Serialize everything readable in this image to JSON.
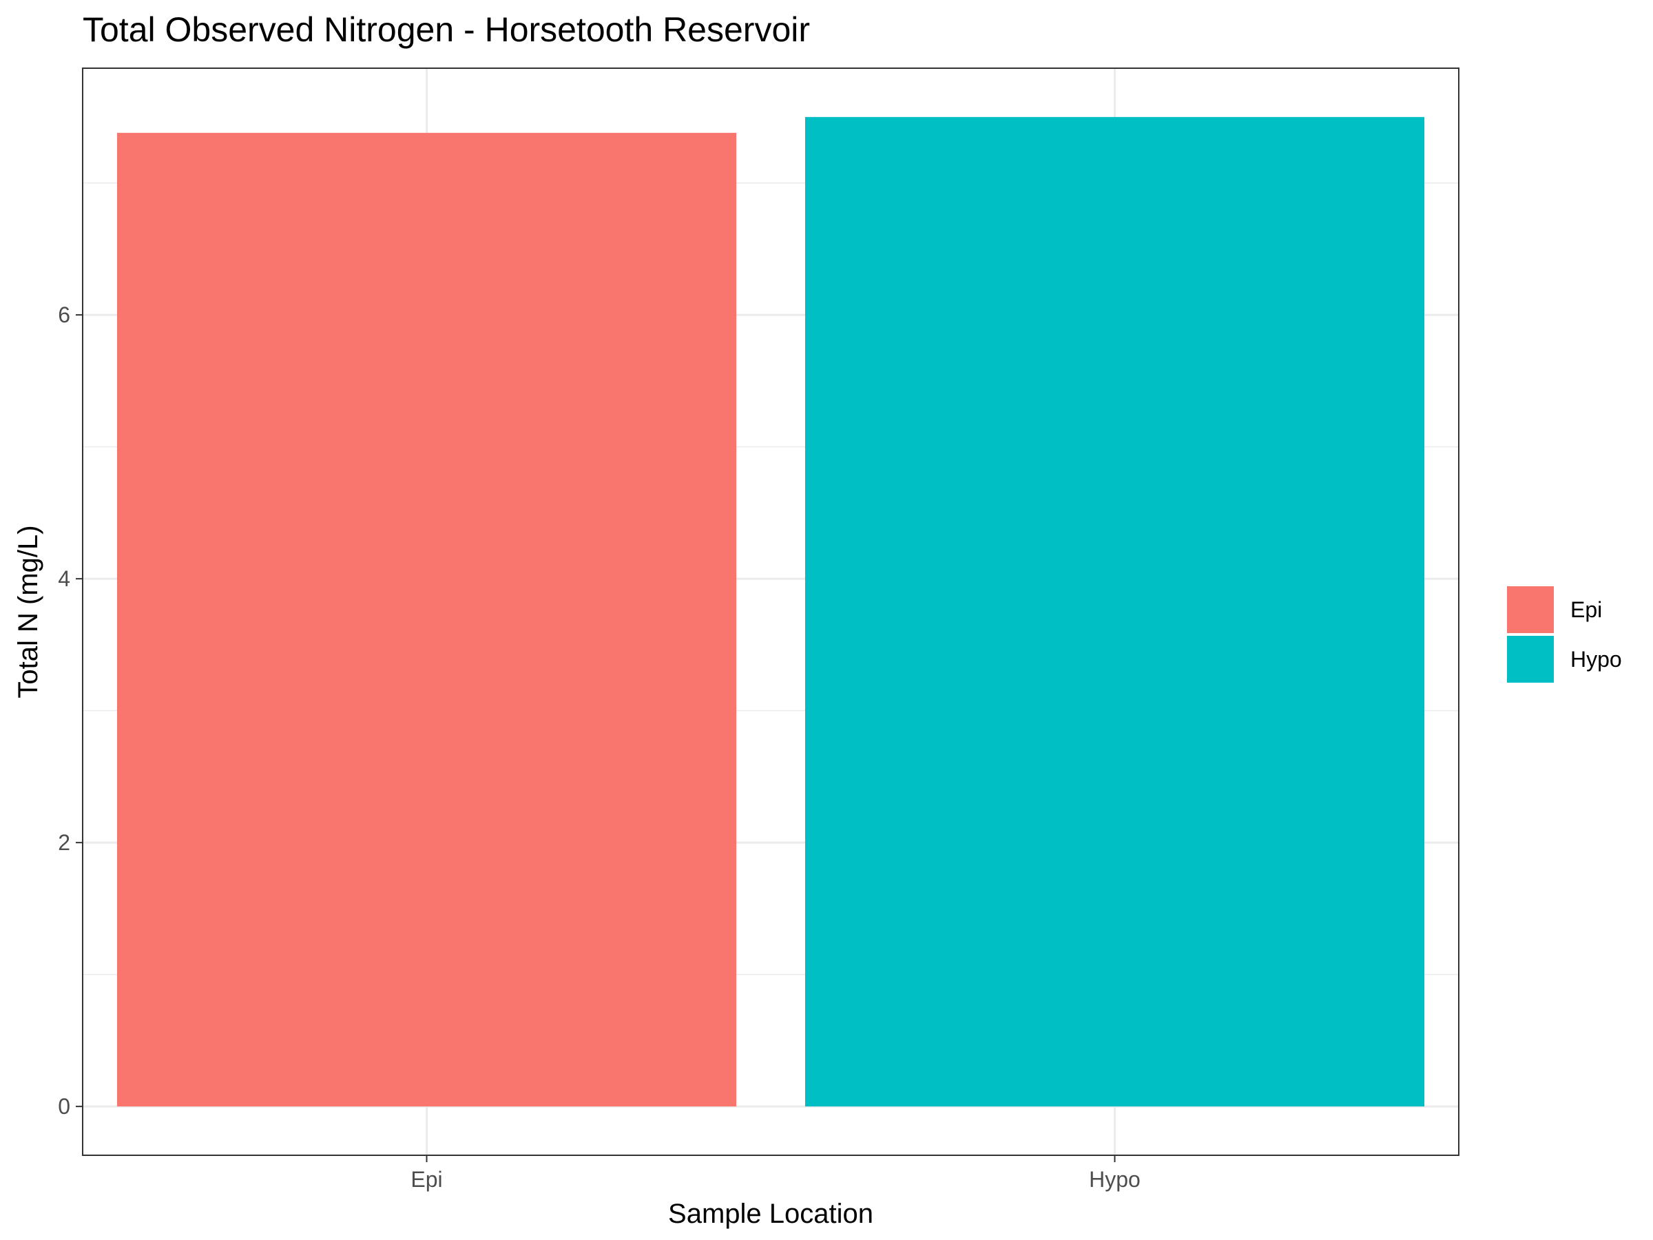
{
  "chart_data": {
    "type": "bar",
    "title": "Total Observed Nitrogen - Horsetooth Reservoir",
    "xlabel": "Sample Location",
    "ylabel": "Total N (mg/L)",
    "categories": [
      "Epi",
      "Hypo"
    ],
    "values": [
      7.38,
      7.5
    ],
    "colors": [
      "#F8766D",
      "#00BFC4"
    ],
    "ylim": [
      -0.37,
      7.87
    ],
    "yticks": [
      0,
      2,
      4,
      6
    ],
    "yticks_labels": [
      "0",
      "2",
      "4",
      "6"
    ],
    "y_minor_ticks": [
      1,
      3,
      5,
      7
    ],
    "grid": true,
    "legend": {
      "position": "right",
      "entries": [
        {
          "label": "Epi",
          "color": "#F8766D"
        },
        {
          "label": "Hypo",
          "color": "#00BFC4"
        }
      ]
    }
  }
}
